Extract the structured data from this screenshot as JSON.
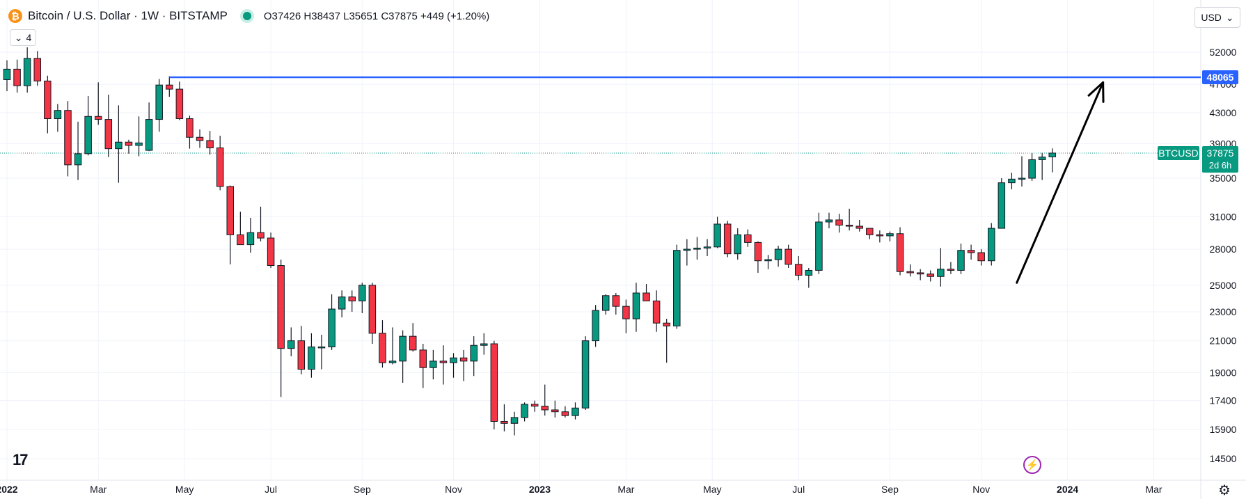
{
  "header": {
    "coin_symbol": "₿",
    "title": "Bitcoin / U.S. Dollar · 1W · BITSTAMP",
    "ohlc": "O37426 H38437 L35651 C37875 +449 (+1.20%)"
  },
  "indicator_toggle": {
    "chevron": "⌄",
    "count": "4"
  },
  "currency": {
    "label": "USD",
    "chevron": "⌄"
  },
  "logo_text": "17",
  "colors": {
    "up": "#089981",
    "down": "#f23645",
    "level": "#2962ff",
    "arrow": "#000000",
    "grid": "#f0f3fa"
  },
  "chart_data": {
    "type": "candlestick",
    "title": "Bitcoin / U.S. Dollar · 1W · BITSTAMP",
    "symbol": "BTCUSD",
    "scale": "log",
    "ylim": [
      13800,
      55000
    ],
    "y_ticks": [
      52000,
      47000,
      43000,
      39000,
      35000,
      31000,
      28000,
      25000,
      23000,
      21000,
      19000,
      17400,
      15900,
      14500
    ],
    "x_ticks": [
      {
        "label": "2022",
        "week": 0,
        "bold": true
      },
      {
        "label": "Mar",
        "week": 9,
        "bold": false
      },
      {
        "label": "May",
        "week": 17.5,
        "bold": false
      },
      {
        "label": "Jul",
        "week": 26,
        "bold": false
      },
      {
        "label": "Sep",
        "week": 35,
        "bold": false
      },
      {
        "label": "Nov",
        "week": 44,
        "bold": false
      },
      {
        "label": "2023",
        "week": 52.5,
        "bold": true
      },
      {
        "label": "Mar",
        "week": 61,
        "bold": false
      },
      {
        "label": "May",
        "week": 69.5,
        "bold": false
      },
      {
        "label": "Jul",
        "week": 78,
        "bold": false
      },
      {
        "label": "Sep",
        "week": 87,
        "bold": false
      },
      {
        "label": "Nov",
        "week": 96,
        "bold": false
      },
      {
        "label": "2024",
        "week": 104.5,
        "bold": true
      },
      {
        "label": "Mar",
        "week": 113,
        "bold": false
      }
    ],
    "candles": [
      [
        47700,
        50700,
        46000,
        49300
      ],
      [
        49300,
        50800,
        45800,
        46800
      ],
      [
        46800,
        52800,
        45800,
        51000
      ],
      [
        51000,
        52200,
        46800,
        47500
      ],
      [
        47500,
        48300,
        40300,
        42200
      ],
      [
        42200,
        44200,
        40500,
        43300
      ],
      [
        43300,
        44600,
        35200,
        36500
      ],
      [
        36500,
        41800,
        34800,
        37800
      ],
      [
        37800,
        45300,
        37600,
        42500
      ],
      [
        42500,
        47300,
        41400,
        42100
      ],
      [
        42100,
        45500,
        37400,
        38400
      ],
      [
        38400,
        44000,
        34500,
        39200
      ],
      [
        39200,
        39500,
        37800,
        38800
      ],
      [
        38800,
        42500,
        37500,
        39100
      ],
      [
        38200,
        44400,
        38100,
        42100
      ],
      [
        42100,
        47800,
        40500,
        46900
      ],
      [
        46900,
        48200,
        45200,
        46300
      ],
      [
        46300,
        47400,
        42000,
        42200
      ],
      [
        42200,
        42600,
        38400,
        39800
      ],
      [
        39800,
        40800,
        38500,
        39400
      ],
      [
        39400,
        40600,
        37700,
        38500
      ],
      [
        38500,
        40000,
        33700,
        34100
      ],
      [
        34100,
        34200,
        26700,
        29300
      ],
      [
        29300,
        31500,
        28700,
        28400
      ],
      [
        28400,
        30900,
        27700,
        29500
      ],
      [
        29500,
        32000,
        28700,
        29000
      ],
      [
        29000,
        29500,
        26400,
        26600
      ],
      [
        26600,
        27100,
        17600,
        20500
      ],
      [
        20500,
        21900,
        20000,
        21000
      ],
      [
        21000,
        22000,
        18900,
        19200
      ],
      [
        19200,
        21500,
        18700,
        20600
      ],
      [
        20600,
        21400,
        19200,
        20600
      ],
      [
        20600,
        24300,
        20400,
        23200
      ],
      [
        23200,
        24600,
        22600,
        24100
      ],
      [
        24100,
        24600,
        23000,
        23800
      ],
      [
        23800,
        25200,
        22900,
        25000
      ],
      [
        25000,
        25200,
        20800,
        21500
      ],
      [
        21500,
        22400,
        19300,
        19600
      ],
      [
        19600,
        21900,
        19500,
        19700
      ],
      [
        19700,
        21700,
        18400,
        21300
      ],
      [
        21300,
        22200,
        20300,
        20400
      ],
      [
        20400,
        20800,
        18100,
        19300
      ],
      [
        19300,
        20400,
        18600,
        19700
      ],
      [
        19700,
        20700,
        18300,
        19600
      ],
      [
        19600,
        20200,
        18700,
        19900
      ],
      [
        19900,
        20400,
        18500,
        19700
      ],
      [
        19700,
        21300,
        18800,
        20700
      ],
      [
        20700,
        21500,
        20100,
        20800
      ],
      [
        20800,
        21000,
        15900,
        16300
      ],
      [
        16300,
        17200,
        15800,
        16200
      ],
      [
        16200,
        16800,
        15600,
        16500
      ],
      [
        16500,
        17300,
        16300,
        17200
      ],
      [
        17200,
        17400,
        16800,
        17100
      ],
      [
        17100,
        18300,
        16600,
        16900
      ],
      [
        16900,
        17400,
        16500,
        16800
      ],
      [
        16800,
        17100,
        16500,
        16600
      ],
      [
        16600,
        17300,
        16400,
        17000
      ],
      [
        17000,
        21300,
        16900,
        21000
      ],
      [
        21000,
        23500,
        20600,
        23100
      ],
      [
        23100,
        24300,
        22800,
        24200
      ],
      [
        24200,
        24400,
        22800,
        23400
      ],
      [
        23400,
        23900,
        21500,
        22500
      ],
      [
        22500,
        25200,
        21600,
        24400
      ],
      [
        24400,
        25100,
        23900,
        23800
      ],
      [
        23800,
        24600,
        21600,
        22200
      ],
      [
        22200,
        22500,
        19600,
        22000
      ],
      [
        22000,
        28400,
        21800,
        27900
      ],
      [
        27900,
        28900,
        26600,
        28000
      ],
      [
        28000,
        29100,
        27100,
        28100
      ],
      [
        28100,
        28900,
        27400,
        28200
      ],
      [
        28200,
        31000,
        28100,
        30300
      ],
      [
        30300,
        30600,
        27300,
        27600
      ],
      [
        27600,
        29900,
        27100,
        29300
      ],
      [
        29300,
        29800,
        28200,
        28600
      ],
      [
        28600,
        28700,
        26000,
        27000
      ],
      [
        27000,
        27500,
        26300,
        27100
      ],
      [
        27100,
        28300,
        26500,
        28000
      ],
      [
        28000,
        28400,
        26400,
        26700
      ],
      [
        26700,
        27400,
        25400,
        25800
      ],
      [
        25800,
        26400,
        24800,
        26200
      ],
      [
        26200,
        31400,
        25900,
        30500
      ],
      [
        30500,
        31400,
        29900,
        30700
      ],
      [
        30700,
        31300,
        29500,
        30200
      ],
      [
        30200,
        31800,
        29700,
        30100
      ],
      [
        30100,
        30700,
        29600,
        29900
      ],
      [
        29900,
        29900,
        28900,
        29300
      ],
      [
        29300,
        29700,
        28600,
        29200
      ],
      [
        29200,
        29600,
        28700,
        29400
      ],
      [
        29400,
        30000,
        25800,
        26100
      ],
      [
        26100,
        26700,
        25700,
        26000
      ],
      [
        26000,
        26300,
        25400,
        25900
      ],
      [
        25900,
        26200,
        25300,
        25700
      ],
      [
        25700,
        28100,
        24900,
        26300
      ],
      [
        26300,
        26900,
        25900,
        26200
      ],
      [
        26200,
        28500,
        25900,
        27900
      ],
      [
        27900,
        28400,
        27100,
        27700
      ],
      [
        27700,
        28000,
        26600,
        27000
      ],
      [
        27000,
        30400,
        26600,
        29900
      ],
      [
        29900,
        35000,
        29900,
        34500
      ],
      [
        34500,
        35600,
        33800,
        34900
      ],
      [
        34900,
        37500,
        34100,
        35000
      ],
      [
        35000,
        37900,
        34700,
        37100
      ],
      [
        37100,
        37900,
        34800,
        37400
      ],
      [
        37426,
        38437,
        35651,
        37875
      ]
    ],
    "horizontal_level": {
      "value": 48065,
      "label": "48065",
      "from_week": 16
    },
    "last_price": {
      "value": 37875,
      "label": "37875",
      "countdown": "2d 6h",
      "symbol_label": "BTCUSD"
    },
    "annotation": {
      "type": "arrow",
      "from_week": 99.5,
      "from_price": 25200,
      "to_week": 108,
      "to_price": 47300
    }
  }
}
